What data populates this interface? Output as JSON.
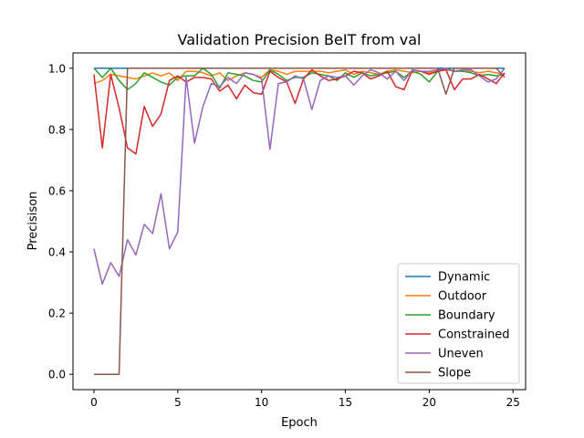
{
  "chart_data": {
    "type": "line",
    "title": "Validation Precision BeIT from val",
    "xlabel": "Epoch",
    "ylabel": "Precisison",
    "xlim": [
      -1.25,
      25.75
    ],
    "ylim": [
      -0.05,
      1.05
    ],
    "xticks": [
      0,
      5,
      10,
      15,
      20,
      25
    ],
    "yticks": [
      0.0,
      0.2,
      0.4,
      0.6,
      0.8,
      1.0
    ],
    "xtick_labels": [
      "0",
      "5",
      "10",
      "15",
      "20",
      "25"
    ],
    "ytick_labels": [
      "0.0",
      "0.2",
      "0.4",
      "0.6",
      "0.8",
      "1.0"
    ],
    "grid": false,
    "legend_position": "lower-right",
    "x": [
      0,
      0.5,
      1,
      1.5,
      2,
      2.5,
      3,
      3.5,
      4,
      4.5,
      5,
      5.5,
      6,
      6.5,
      7,
      7.5,
      8,
      8.5,
      9,
      9.5,
      10,
      10.5,
      11,
      11.5,
      12,
      12.5,
      13,
      13.5,
      14,
      14.5,
      15,
      15.5,
      16,
      16.5,
      17,
      17.5,
      18,
      18.5,
      19,
      19.5,
      20,
      20.5,
      21,
      21.5,
      22,
      22.5,
      23,
      23.5,
      24,
      24.5
    ],
    "series": [
      {
        "name": "Dynamic",
        "color": "#1f77b4",
        "values": [
          1.0,
          1.0,
          1.0,
          1.0,
          1.0,
          1.0,
          1.0,
          1.0,
          1.0,
          1.0,
          1.0,
          1.0,
          1.0,
          1.0,
          1.0,
          1.0,
          1.0,
          1.0,
          1.0,
          1.0,
          1.0,
          1.0,
          1.0,
          1.0,
          1.0,
          1.0,
          1.0,
          1.0,
          1.0,
          1.0,
          1.0,
          1.0,
          1.0,
          1.0,
          1.0,
          1.0,
          1.0,
          1.0,
          1.0,
          1.0,
          1.0,
          1.0,
          1.0,
          1.0,
          1.0,
          1.0,
          1.0,
          1.0,
          1.0,
          1.0
        ]
      },
      {
        "name": "Outdoor",
        "color": "#ff7f0e",
        "values": [
          0.95,
          0.96,
          0.98,
          0.975,
          0.97,
          0.965,
          0.975,
          0.985,
          0.975,
          0.985,
          0.96,
          0.99,
          0.99,
          0.985,
          0.975,
          0.985,
          0.96,
          0.975,
          0.985,
          0.98,
          0.97,
          0.995,
          0.99,
          0.98,
          0.99,
          0.99,
          0.99,
          0.99,
          0.985,
          0.99,
          0.995,
          0.98,
          0.99,
          0.985,
          0.98,
          0.99,
          0.995,
          0.99,
          0.985,
          0.99,
          0.985,
          0.99,
          0.995,
          0.99,
          0.995,
          0.99,
          0.985,
          0.99,
          0.985,
          0.98
        ]
      },
      {
        "name": "Boundary",
        "color": "#2ca02c",
        "values": [
          1.0,
          0.97,
          1.0,
          0.96,
          0.93,
          0.95,
          0.985,
          0.97,
          0.955,
          0.945,
          0.97,
          0.975,
          0.975,
          1.0,
          0.98,
          0.935,
          0.985,
          0.98,
          0.975,
          0.96,
          0.955,
          0.995,
          0.98,
          0.96,
          0.97,
          0.97,
          0.985,
          0.98,
          0.975,
          0.96,
          0.985,
          0.97,
          0.985,
          0.975,
          0.98,
          0.985,
          0.99,
          0.97,
          0.99,
          0.98,
          0.955,
          0.99,
          1.0,
          0.99,
          0.99,
          0.985,
          0.975,
          0.98,
          0.975,
          0.98
        ]
      },
      {
        "name": "Constrained",
        "color": "#d62728",
        "values": [
          0.98,
          0.74,
          0.98,
          0.87,
          0.74,
          0.72,
          0.875,
          0.81,
          0.85,
          0.96,
          0.975,
          0.955,
          0.97,
          0.97,
          0.965,
          0.925,
          0.945,
          0.9,
          0.945,
          0.92,
          0.915,
          0.99,
          0.97,
          0.955,
          0.885,
          0.965,
          0.995,
          0.975,
          0.96,
          0.965,
          0.975,
          0.99,
          0.985,
          0.965,
          0.975,
          0.99,
          0.94,
          0.93,
          0.995,
          0.99,
          0.98,
          0.99,
          0.995,
          0.93,
          0.965,
          0.965,
          0.98,
          0.965,
          0.95,
          0.985
        ]
      },
      {
        "name": "Uneven",
        "color": "#9467bd",
        "values": [
          0.41,
          0.295,
          0.365,
          0.32,
          0.44,
          0.39,
          0.49,
          0.46,
          0.59,
          0.41,
          0.465,
          0.97,
          0.755,
          0.875,
          0.95,
          0.94,
          0.97,
          0.95,
          0.985,
          0.98,
          0.965,
          0.735,
          0.95,
          0.955,
          0.975,
          0.965,
          0.865,
          0.96,
          0.975,
          0.97,
          0.975,
          0.945,
          0.975,
          0.995,
          0.985,
          0.965,
          0.99,
          0.96,
          0.995,
          0.99,
          0.99,
          0.995,
          1.0,
          0.99,
          0.995,
          0.995,
          0.975,
          0.955,
          0.965,
          1.0
        ]
      },
      {
        "name": "Slope",
        "color": "#8c564b",
        "values": [
          0.0,
          0.0,
          0.0,
          0.0,
          1.0,
          1.0,
          1.0,
          1.0,
          1.0,
          1.0,
          1.0,
          1.0,
          1.0,
          1.0,
          1.0,
          1.0,
          1.0,
          1.0,
          1.0,
          1.0,
          1.0,
          1.0,
          1.0,
          1.0,
          1.0,
          1.0,
          1.0,
          1.0,
          1.0,
          1.0,
          1.0,
          1.0,
          1.0,
          1.0,
          1.0,
          1.0,
          1.0,
          1.0,
          1.0,
          1.0,
          1.0,
          1.0,
          0.915,
          1.0,
          1.0,
          1.0,
          1.0,
          1.0,
          1.0,
          0.97
        ]
      }
    ]
  }
}
